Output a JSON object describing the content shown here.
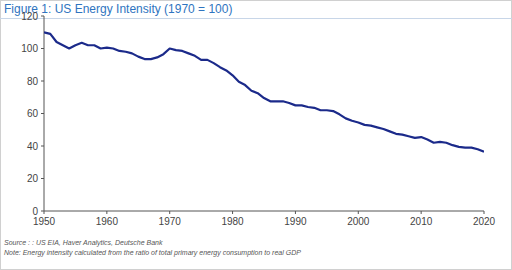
{
  "chart_data": {
    "type": "line",
    "title": "Figure 1: US Energy Intensity (1970 = 100)",
    "source": "Source : : US EIA, Haver Analytics, Deutsche Bank",
    "note": "Note: Energy intensity calculated from the ratio of total primary energy consumption to real GDP",
    "color": "#1b2a8a",
    "x": [
      1950,
      1951,
      1952,
      1953,
      1954,
      1955,
      1956,
      1957,
      1958,
      1959,
      1960,
      1961,
      1962,
      1963,
      1964,
      1965,
      1966,
      1967,
      1968,
      1969,
      1970,
      1971,
      1972,
      1973,
      1974,
      1975,
      1976,
      1977,
      1978,
      1979,
      1980,
      1981,
      1982,
      1983,
      1984,
      1985,
      1986,
      1987,
      1988,
      1989,
      1990,
      1991,
      1992,
      1993,
      1994,
      1995,
      1996,
      1997,
      1998,
      1999,
      2000,
      2001,
      2002,
      2003,
      2004,
      2005,
      2006,
      2007,
      2008,
      2009,
      2010,
      2011,
      2012,
      2013,
      2014,
      2015,
      2016,
      2017,
      2018,
      2019,
      2020
    ],
    "values": [
      110,
      109,
      104,
      102,
      100,
      102,
      103.5,
      102,
      102,
      100,
      100.5,
      100,
      98.5,
      98,
      97,
      95,
      93.5,
      93.5,
      94.5,
      96.5,
      100,
      99,
      98.5,
      97,
      95.5,
      93,
      93,
      91,
      88.5,
      86.5,
      83.5,
      79.5,
      77.5,
      74,
      72.5,
      69.5,
      67.5,
      67.5,
      67.5,
      66.5,
      65,
      65,
      64,
      63.5,
      62,
      62,
      61.5,
      59.5,
      57,
      55.5,
      54.5,
      53,
      52.5,
      51.5,
      50.5,
      49,
      47.5,
      47,
      46,
      45,
      45.5,
      44,
      42,
      42.5,
      42,
      40.5,
      39.5,
      39,
      39,
      38,
      36.5
    ],
    "xlim": [
      1950,
      2020
    ],
    "xticks": [
      1950,
      1960,
      1970,
      1980,
      1990,
      2000,
      2010,
      2020
    ],
    "ylim": [
      0,
      120
    ],
    "yticks": [
      0,
      20,
      40,
      60,
      80,
      100,
      120
    ],
    "grid": false
  }
}
